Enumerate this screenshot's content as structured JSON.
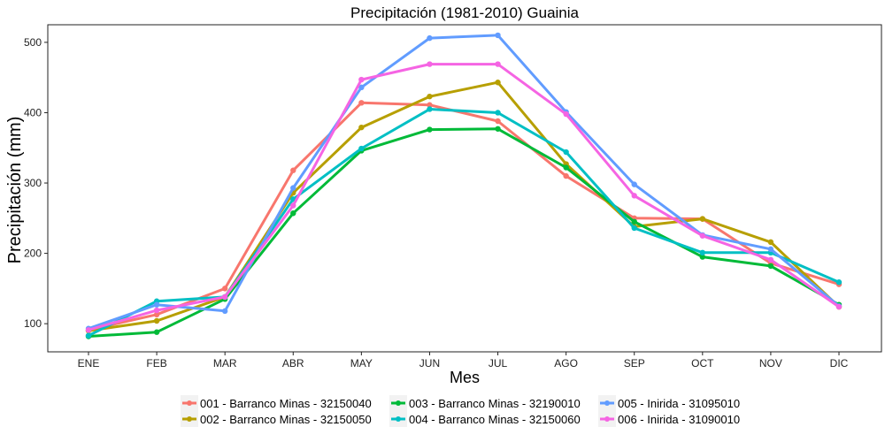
{
  "chart_data": {
    "type": "line",
    "title": "Precipitación (1981-2010)  Guainia",
    "xlabel": "Mes",
    "ylabel": "Precipitación (mm)",
    "categories": [
      "ENE",
      "FEB",
      "MAR",
      "ABR",
      "MAY",
      "JUN",
      "JUL",
      "AGO",
      "SEP",
      "OCT",
      "NOV",
      "DIC"
    ],
    "ylim": [
      60,
      525
    ],
    "yticks": [
      100,
      200,
      300,
      400,
      500
    ],
    "legend_position": "bottom",
    "grid": false,
    "series": [
      {
        "name": "001 - Barranco Minas - 32150040",
        "color": "#F8766D",
        "values": [
          91,
          113,
          150,
          318,
          414,
          411,
          388,
          310,
          250,
          249,
          186,
          156
        ]
      },
      {
        "name": "002 - Barranco Minas - 32150050",
        "color": "#B79F00",
        "values": [
          90,
          104,
          138,
          286,
          379,
          423,
          443,
          327,
          238,
          249,
          216,
          124
        ]
      },
      {
        "name": "003 - Barranco Minas - 32190010",
        "color": "#00BA38",
        "values": [
          82,
          88,
          135,
          257,
          346,
          376,
          377,
          322,
          245,
          195,
          182,
          127
        ]
      },
      {
        "name": "004 - Barranco Minas - 32150060",
        "color": "#00BFC4",
        "values": [
          83,
          132,
          138,
          277,
          349,
          405,
          400,
          344,
          236,
          201,
          201,
          159
        ]
      },
      {
        "name": "005 - Inirida - 31095010",
        "color": "#619CFF",
        "values": [
          93,
          127,
          118,
          293,
          436,
          506,
          510,
          401,
          298,
          226,
          206,
          125
        ]
      },
      {
        "name": "006 - Inirida - 31090010",
        "color": "#F564E3",
        "values": [
          91,
          119,
          138,
          268,
          447,
          469,
          469,
          398,
          282,
          225,
          191,
          124
        ]
      }
    ]
  }
}
